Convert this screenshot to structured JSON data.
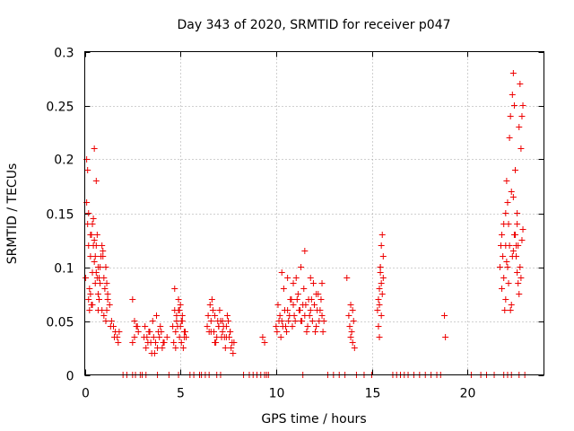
{
  "chart_data": {
    "type": "scatter",
    "title": "Day 343 of 2020, SRMTID for receiver p047",
    "xlabel": "GPS time / hours",
    "ylabel": "SRMTID / TECUs",
    "xlim": [
      0,
      24
    ],
    "ylim": [
      0,
      0.3
    ],
    "xticks": [
      0,
      5,
      10,
      15,
      20
    ],
    "xtick_labels": [
      "0",
      "5",
      "10",
      "15",
      "20"
    ],
    "yticks": [
      0,
      0.05,
      0.1,
      0.15,
      0.2,
      0.25,
      0.3
    ],
    "ytick_labels": [
      "0",
      "0.05",
      "0.1",
      "0.15",
      "0.2",
      "0.25",
      "0.3"
    ],
    "grid": true,
    "marker": "plus",
    "color": "#ee0000",
    "series": [
      {
        "name": "SRMTID",
        "x": [
          0.05,
          0.1,
          0.15,
          0.2,
          0.25,
          0.3,
          0.35,
          0.4,
          0.45,
          0.5,
          0.55,
          0.6,
          0.65,
          0.7,
          0.75,
          0.8,
          0.85,
          0.9,
          0.95,
          1.0,
          1.05,
          1.1,
          1.15,
          1.2,
          1.3,
          1.4,
          1.5,
          1.6,
          1.7,
          1.8,
          0.1,
          0.15,
          0.2,
          0.3,
          0.4,
          0.5,
          0.6,
          0.7,
          0.8,
          0.9,
          1.0,
          1.1,
          1.2,
          0.25,
          0.35,
          0.55,
          0.65,
          0.45,
          0.75,
          0.95,
          1.15,
          1.35,
          1.55,
          1.75,
          0.5,
          0.6,
          0.3,
          0.4,
          0.2,
          0.7,
          2.5,
          2.6,
          2.7,
          2.8,
          2.5,
          2.6,
          2.75,
          3.1,
          3.2,
          3.3,
          3.4,
          3.5,
          3.6,
          3.7,
          3.8,
          3.9,
          4.0,
          4.1,
          3.15,
          3.35,
          3.55,
          3.75,
          3.95,
          4.15,
          4.3,
          3.45,
          3.65,
          3.85,
          3.25,
          4.05,
          4.6,
          4.7,
          4.8,
          4.9,
          5.0,
          5.1,
          5.2,
          5.3,
          4.65,
          4.75,
          4.85,
          4.95,
          5.05,
          5.15,
          5.25,
          4.7,
          4.9,
          5.1,
          4.8,
          5.0,
          5.2,
          4.75,
          5.05,
          4.95,
          6.4,
          6.5,
          6.6,
          6.7,
          6.8,
          6.9,
          7.0,
          7.1,
          7.2,
          7.3,
          7.4,
          7.5,
          7.6,
          7.7,
          7.8,
          6.45,
          6.55,
          6.65,
          6.75,
          6.85,
          6.95,
          7.05,
          7.15,
          7.25,
          7.35,
          7.45,
          7.55,
          7.65,
          7.75,
          6.6,
          6.8,
          7.0,
          7.2,
          7.4,
          7.6,
          9.3,
          9.4,
          10.0,
          10.1,
          10.2,
          10.3,
          10.4,
          10.5,
          10.6,
          10.7,
          10.8,
          10.9,
          11.0,
          11.1,
          11.2,
          11.3,
          11.4,
          11.5,
          11.6,
          11.7,
          11.8,
          11.9,
          12.0,
          12.1,
          12.2,
          12.3,
          12.4,
          12.5,
          10.05,
          10.15,
          10.25,
          10.35,
          10.45,
          10.55,
          10.65,
          10.75,
          10.85,
          10.95,
          11.05,
          11.15,
          11.25,
          11.35,
          11.45,
          11.55,
          11.65,
          11.75,
          11.85,
          11.95,
          12.05,
          12.15,
          12.25,
          12.35,
          12.45,
          10.3,
          10.9,
          11.5,
          12.1,
          11.8,
          12.4,
          11.3,
          10.6,
          13.8,
          13.85,
          13.9,
          13.95,
          14.0,
          14.05,
          14.1,
          13.9,
          14.0,
          13.7,
          15.3,
          15.35,
          15.4,
          15.45,
          15.5,
          15.55,
          15.6,
          15.4,
          15.5,
          15.45,
          15.55,
          15.35,
          15.5,
          15.6,
          15.4,
          15.45,
          18.8,
          18.85,
          21.7,
          21.75,
          21.8,
          21.85,
          21.9,
          21.95,
          22.0,
          22.05,
          22.1,
          22.15,
          22.2,
          22.25,
          22.3,
          22.35,
          22.4,
          22.45,
          22.5,
          22.55,
          22.6,
          22.65,
          22.7,
          22.75,
          22.8,
          22.85,
          22.9,
          21.8,
          21.9,
          22.0,
          22.1,
          22.2,
          22.3,
          22.4,
          22.5,
          22.6,
          22.7,
          22.8,
          22.05,
          22.15,
          22.25,
          22.35,
          22.45,
          22.55,
          22.65,
          22.75,
          22.85,
          22.0,
          22.4,
          22.6,
          22.9,
          2.0,
          2.2,
          2.5,
          2.65,
          2.9,
          3.0,
          3.2,
          3.8,
          4.4,
          4.9,
          5.5,
          5.7,
          6.0,
          6.1,
          6.3,
          6.5,
          6.9,
          7.1,
          8.3,
          8.6,
          8.8,
          9.0,
          9.2,
          9.4,
          9.5,
          9.6,
          11.4,
          12.7,
          13.0,
          13.3,
          13.6,
          14.2,
          14.6,
          15.0,
          16.1,
          16.5,
          16.7,
          16.9,
          17.2,
          17.5,
          17.8,
          18.1,
          18.4,
          18.6,
          20.2,
          20.7,
          21.0,
          21.4,
          21.9,
          22.3,
          22.7,
          23.0,
          22.1,
          16.3
        ],
        "y": [
          0.09,
          0.16,
          0.14,
          0.12,
          0.08,
          0.11,
          0.13,
          0.095,
          0.12,
          0.105,
          0.085,
          0.095,
          0.09,
          0.075,
          0.07,
          0.1,
          0.11,
          0.12,
          0.115,
          0.09,
          0.08,
          0.1,
          0.085,
          0.075,
          0.065,
          0.05,
          0.045,
          0.04,
          0.035,
          0.04,
          0.2,
          0.19,
          0.15,
          0.13,
          0.14,
          0.21,
          0.18,
          0.1,
          0.085,
          0.06,
          0.055,
          0.05,
          0.07,
          0.06,
          0.065,
          0.11,
          0.13,
          0.145,
          0.09,
          0.11,
          0.06,
          0.045,
          0.035,
          0.03,
          0.125,
          0.12,
          0.075,
          0.065,
          0.07,
          0.06,
          0.07,
          0.05,
          0.045,
          0.04,
          0.03,
          0.035,
          0.045,
          0.035,
          0.025,
          0.03,
          0.04,
          0.02,
          0.035,
          0.03,
          0.025,
          0.035,
          0.04,
          0.03,
          0.045,
          0.04,
          0.05,
          0.055,
          0.045,
          0.03,
          0.035,
          0.03,
          0.02,
          0.04,
          0.035,
          0.025,
          0.045,
          0.06,
          0.05,
          0.07,
          0.065,
          0.055,
          0.04,
          0.035,
          0.03,
          0.04,
          0.045,
          0.035,
          0.03,
          0.025,
          0.04,
          0.08,
          0.06,
          0.05,
          0.055,
          0.045,
          0.035,
          0.025,
          0.05,
          0.06,
          0.045,
          0.04,
          0.05,
          0.06,
          0.055,
          0.035,
          0.045,
          0.05,
          0.04,
          0.035,
          0.045,
          0.05,
          0.04,
          0.03,
          0.03,
          0.055,
          0.065,
          0.07,
          0.04,
          0.03,
          0.05,
          0.06,
          0.035,
          0.045,
          0.025,
          0.055,
          0.035,
          0.025,
          0.02,
          0.04,
          0.03,
          0.045,
          0.05,
          0.035,
          0.04,
          0.035,
          0.03,
          0.045,
          0.065,
          0.055,
          0.05,
          0.08,
          0.045,
          0.06,
          0.055,
          0.07,
          0.065,
          0.05,
          0.07,
          0.06,
          0.05,
          0.065,
          0.055,
          0.04,
          0.07,
          0.06,
          0.05,
          0.065,
          0.045,
          0.075,
          0.06,
          0.055,
          0.05,
          0.04,
          0.05,
          0.035,
          0.045,
          0.06,
          0.04,
          0.05,
          0.07,
          0.045,
          0.055,
          0.09,
          0.075,
          0.06,
          0.05,
          0.08,
          0.065,
          0.045,
          0.055,
          0.07,
          0.085,
          0.04,
          0.06,
          0.05,
          0.07,
          0.04,
          0.095,
          0.085,
          0.115,
          0.075,
          0.09,
          0.085,
          0.1,
          0.09,
          0.055,
          0.045,
          0.035,
          0.04,
          0.03,
          0.05,
          0.025,
          0.065,
          0.06,
          0.09,
          0.06,
          0.07,
          0.08,
          0.1,
          0.12,
          0.13,
          0.11,
          0.065,
          0.085,
          0.1,
          0.075,
          0.045,
          0.055,
          0.09,
          0.035,
          0.095,
          0.055,
          0.035,
          0.1,
          0.12,
          0.13,
          0.11,
          0.09,
          0.06,
          0.15,
          0.18,
          0.16,
          0.14,
          0.22,
          0.24,
          0.17,
          0.26,
          0.28,
          0.25,
          0.19,
          0.11,
          0.14,
          0.12,
          0.23,
          0.27,
          0.21,
          0.24,
          0.25,
          0.08,
          0.14,
          0.07,
          0.1,
          0.12,
          0.065,
          0.115,
          0.13,
          0.095,
          0.075,
          0.09,
          0.105,
          0.085,
          0.06,
          0.11,
          0.13,
          0.12,
          0.085,
          0.1,
          0.125,
          0.12,
          0.165,
          0.15,
          0.135,
          0,
          0,
          0,
          0,
          0,
          0,
          0,
          0,
          0,
          0,
          0,
          0,
          0,
          0,
          0,
          0,
          0,
          0,
          0,
          0,
          0,
          0,
          0,
          0,
          0,
          0,
          0,
          0,
          0,
          0,
          0,
          0,
          0,
          0,
          0,
          0,
          0,
          0,
          0,
          0,
          0,
          0,
          0,
          0,
          0,
          0,
          0,
          0,
          0,
          0,
          0,
          0,
          0,
          0
        ]
      }
    ]
  }
}
